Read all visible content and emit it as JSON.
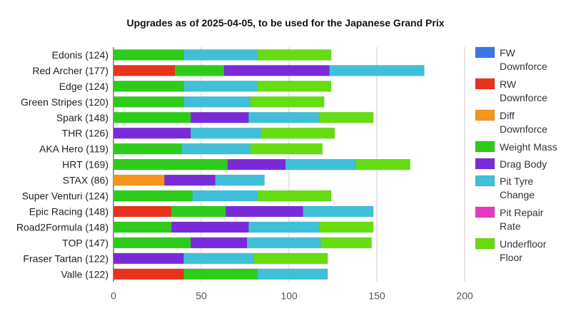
{
  "chart_data": {
    "type": "bar",
    "orientation": "horizontal",
    "stacked": true,
    "title": "Upgrades as of 2025-04-05, to be used for the Japanese Grand Prix",
    "xlabel": "",
    "ylabel": "",
    "xlim": [
      0,
      200
    ],
    "xticks": [
      0,
      50,
      100,
      150,
      200
    ],
    "grid": "vertical",
    "legend_position": "right",
    "categories": [
      "Edonis (124)",
      "Red Archer (177)",
      "Edge (124)",
      "Green Stripes (120)",
      "Spark (148)",
      "THR (126)",
      "AKA Hero (119)",
      "HRT (169)",
      "STAX (86)",
      "Super Venturi (124)",
      "Epic Racing (148)",
      "Road2Formula (148)",
      "TOP (147)",
      "Fraser Tartan (122)",
      "Valle (122)"
    ],
    "series": [
      {
        "name": "FW Downforce",
        "legend_lines": [
          "FW",
          "Downforce"
        ],
        "color": "#3b78e7",
        "values": [
          0,
          0,
          0,
          0,
          0,
          0,
          0,
          0,
          0,
          0,
          0,
          0,
          0,
          0,
          0
        ]
      },
      {
        "name": "RW Downforce",
        "legend_lines": [
          "RW",
          "Downforce"
        ],
        "color": "#e8321c",
        "values": [
          0,
          35,
          0,
          0,
          0,
          0,
          0,
          0,
          0,
          0,
          33,
          0,
          0,
          0,
          40
        ]
      },
      {
        "name": "Diff Downforce",
        "legend_lines": [
          "Diff",
          "Downforce"
        ],
        "color": "#f7941d",
        "values": [
          0,
          0,
          0,
          0,
          0,
          0,
          0,
          0,
          29,
          0,
          0,
          0,
          0,
          0,
          0
        ]
      },
      {
        "name": "Weight Mass",
        "legend_lines": [
          "Weight Mass"
        ],
        "color": "#2ecc1a",
        "values": [
          40,
          28,
          40,
          40,
          44,
          0,
          39,
          65,
          0,
          45,
          31,
          33,
          44,
          0,
          42
        ]
      },
      {
        "name": "Drag Body",
        "legend_lines": [
          "Drag Body"
        ],
        "color": "#7a2bd9",
        "values": [
          0,
          60,
          0,
          0,
          33,
          44,
          0,
          33,
          29,
          0,
          44,
          44,
          32,
          40,
          0
        ]
      },
      {
        "name": "Pit Tyre Change",
        "legend_lines": [
          "Pit Tyre",
          "Change"
        ],
        "color": "#3fc0d8",
        "values": [
          42,
          54,
          42,
          38,
          40,
          40,
          39,
          40,
          28,
          37,
          40,
          40,
          42,
          40,
          40
        ]
      },
      {
        "name": "Pit Repair Rate",
        "legend_lines": [
          "Pit Repair",
          "Rate"
        ],
        "color": "#e53ac4",
        "values": [
          0,
          0,
          0,
          0,
          0,
          0,
          0,
          0,
          0,
          0,
          0,
          0,
          0,
          0,
          0
        ]
      },
      {
        "name": "Underfloor Floor",
        "legend_lines": [
          "Underfloor",
          "Floor"
        ],
        "color": "#66dd11",
        "values": [
          42,
          0,
          42,
          42,
          31,
          42,
          41,
          31,
          0,
          42,
          0,
          31,
          29,
          42,
          0
        ]
      }
    ]
  }
}
